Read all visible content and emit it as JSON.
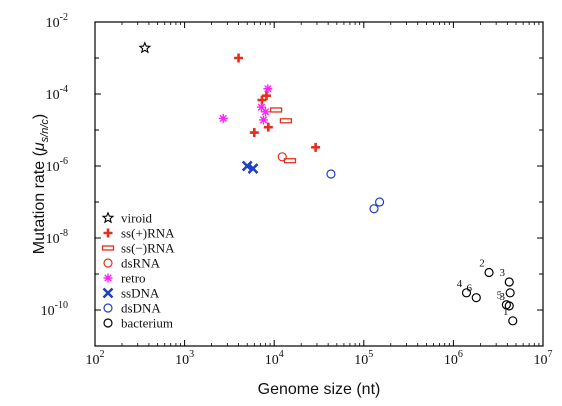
{
  "chart_data": {
    "type": "scatter",
    "xlabel": "Genome size (nt)",
    "ylabel_main": "Mutation rate (",
    "ylabel_mu": "μ",
    "ylabel_sub": "s/n/c",
    "ylabel_close": ")",
    "x_scale": "log10",
    "y_scale": "log10",
    "xlim": [
      100,
      10000000
    ],
    "ylim": [
      1e-11,
      0.01
    ],
    "x_ticks": [
      {
        "value": 100,
        "base": "10",
        "exp": "2"
      },
      {
        "value": 1000,
        "base": "10",
        "exp": "3"
      },
      {
        "value": 10000,
        "base": "10",
        "exp": "4"
      },
      {
        "value": 100000,
        "base": "10",
        "exp": "5"
      },
      {
        "value": 1000000,
        "base": "10",
        "exp": "6"
      },
      {
        "value": 10000000,
        "base": "10",
        "exp": "7"
      }
    ],
    "y_ticks": [
      {
        "value": 0.01,
        "base": "10",
        "exp": "-2"
      },
      {
        "value": 0.0001,
        "base": "10",
        "exp": "-4"
      },
      {
        "value": 1e-06,
        "base": "10",
        "exp": "-6"
      },
      {
        "value": 1e-08,
        "base": "10",
        "exp": "-8"
      },
      {
        "value": 1e-10,
        "base": "10",
        "exp": "-10"
      }
    ],
    "grid": false,
    "legend_position": "bottom-left",
    "series": [
      {
        "name": "viroid",
        "marker": "star",
        "color": "#000000",
        "points": [
          [
            360,
            0.0019
          ]
        ]
      },
      {
        "name": "ss(+)RNA",
        "marker": "plus",
        "color": "#e03020",
        "points": [
          [
            4000,
            0.001
          ],
          [
            7300,
            6.8e-05
          ],
          [
            8200,
            9e-05
          ],
          [
            6000,
            8.5e-06
          ],
          [
            8600,
            1.2e-05
          ],
          [
            29000,
            3.3e-06
          ]
        ]
      },
      {
        "name": "ss(−)RNA",
        "marker": "dash",
        "color": "#e03020",
        "points": [
          [
            10500,
            3.6e-05
          ],
          [
            13500,
            1.8e-05
          ],
          [
            15000,
            1.4e-06
          ]
        ]
      },
      {
        "name": "dsRNA",
        "marker": "circle",
        "color": "#e03020",
        "points": [
          [
            12300,
            1.8e-06
          ]
        ]
      },
      {
        "name": "retro",
        "marker": "asterisk",
        "color": "#ff22ff",
        "points": [
          [
            2700,
            2.1e-05
          ],
          [
            8500,
            0.00014
          ],
          [
            7200,
            4.3e-05
          ],
          [
            8000,
            3.2e-05
          ],
          [
            7600,
            1.9e-05
          ]
        ]
      },
      {
        "name": "ssDNA",
        "marker": "cross",
        "color": "#2040c0",
        "points": [
          [
            5000,
            1e-06
          ],
          [
            5800,
            8.5e-07
          ]
        ]
      },
      {
        "name": "dsDNA",
        "marker": "circle",
        "color": "#2040c0",
        "points": [
          [
            43000,
            6e-07
          ],
          [
            130000,
            6.5e-08
          ],
          [
            150000,
            1e-07
          ]
        ]
      },
      {
        "name": "bacterium",
        "marker": "circle",
        "color": "#000000",
        "points": [
          [
            4600000,
            5e-11
          ],
          [
            2500000,
            1.1e-09
          ],
          [
            4200000,
            6e-10
          ],
          [
            1400000,
            3e-10
          ],
          [
            1800000,
            2.2e-10
          ],
          [
            4300000,
            3e-10
          ],
          [
            3900000,
            1.4e-10
          ],
          [
            4200000,
            1.3e-10
          ]
        ],
        "labels": [
          "1",
          "2",
          "3",
          "4",
          "6",
          "",
          "5",
          "3"
        ]
      }
    ]
  }
}
